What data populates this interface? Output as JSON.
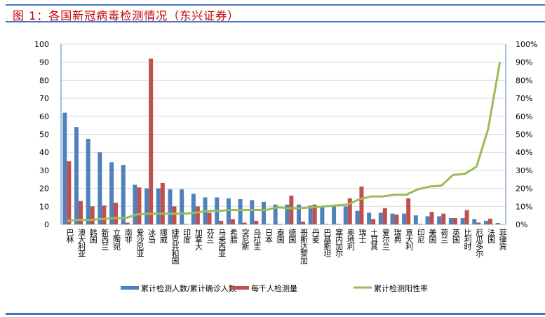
{
  "title": "图 1：各国新冠病毒检测情况（东兴证券）",
  "chart_data": {
    "type": "bar+line",
    "title": "图 1：各国新冠病毒检测情况（东兴证券）",
    "categories": [
      "巴林",
      "澳大利亚",
      "韩国",
      "新西兰",
      "立陶宛",
      "南非",
      "爱沙尼亚",
      "冰岛",
      "挪威",
      "捷克共和国",
      "印度",
      "加拿大",
      "芬兰",
      "马来西亚",
      "希腊",
      "突尼斯",
      "乌拉圭",
      "日本",
      "泰国",
      "德国",
      "哥斯达黎加",
      "丹麦",
      "巴基斯坦",
      "塞内加尔",
      "奥地利",
      "瑞士",
      "土耳其",
      "爱尔兰",
      "瑞典",
      "意大利",
      "印尼",
      "美国",
      "荷兰",
      "英国",
      "比利时",
      "厄瓜多尔",
      "法国",
      "菲律宾"
    ],
    "y_left": {
      "ylim": [
        0,
        100
      ],
      "ticks": [
        "0",
        "10",
        "20",
        "30",
        "40",
        "50",
        "60",
        "70",
        "80",
        "90",
        "100"
      ]
    },
    "y_right": {
      "ylim": [
        0,
        100
      ],
      "ticks": [
        "0%",
        "10%",
        "20%",
        "30%",
        "40%",
        "50%",
        "60%",
        "70%",
        "80%",
        "90%",
        "100%"
      ]
    },
    "grid": true,
    "legend_position": "bottom",
    "series": [
      {
        "name": "累计检测人数/累计确诊人数",
        "type": "bar",
        "axis": "left",
        "color": "#4f81bd",
        "values": [
          62,
          54,
          47.5,
          40,
          34.5,
          33,
          22,
          20,
          20,
          19.5,
          19.5,
          17,
          15,
          15,
          14.5,
          14,
          13.5,
          12.5,
          11,
          11,
          11,
          10.5,
          10,
          10,
          10,
          7.5,
          6.5,
          6.5,
          6,
          6,
          5,
          4.5,
          4.5,
          3.5,
          3.5,
          3,
          2,
          0.8
        ]
      },
      {
        "name": "每千人检测量",
        "type": "bar",
        "axis": "left",
        "color": "#c0504d",
        "values": [
          35,
          13,
          10,
          10.5,
          12,
          1,
          20.5,
          92,
          23,
          10,
          0.3,
          10,
          6.5,
          2,
          3,
          1,
          2,
          0.3,
          0.3,
          16,
          1.5,
          11,
          0.3,
          0.3,
          14.5,
          21,
          3,
          9,
          5.5,
          14.5,
          0.3,
          7,
          6,
          3.5,
          8,
          1,
          3.2,
          0.2
        ]
      },
      {
        "name": "累计检测阳性率",
        "type": "line",
        "axis": "right",
        "color": "#9bbb59",
        "values": [
          2,
          2.5,
          2.5,
          3,
          3.5,
          3.5,
          5.5,
          6,
          6,
          6,
          6,
          6.5,
          7.5,
          7.5,
          8,
          8,
          8,
          8,
          9.5,
          9,
          9,
          9.5,
          10,
          10.5,
          11,
          14,
          15.5,
          15.5,
          16.5,
          16.5,
          19.5,
          21,
          21.5,
          27.5,
          28,
          32,
          53,
          90
        ]
      }
    ]
  }
}
